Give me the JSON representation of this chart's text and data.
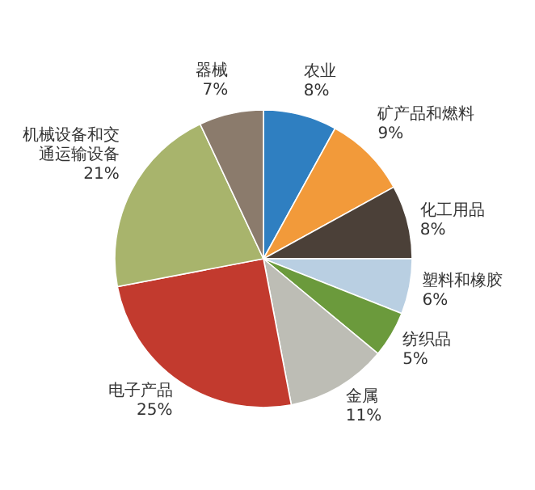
{
  "chart_data": {
    "type": "pie",
    "categories": [
      "农业",
      "矿产品和燃料",
      "化工用品",
      "塑料和橡胶",
      "纺织品",
      "金属",
      "电子产品",
      "机械设备和交通运输设备",
      "器械"
    ],
    "values": [
      8,
      9,
      8,
      6,
      5,
      11,
      25,
      21,
      7
    ],
    "value_labels": [
      "8%",
      "9%",
      "8%",
      "6%",
      "5%",
      "11%",
      "25%",
      "21%",
      "7%"
    ],
    "colors": [
      "#2f7fc1",
      "#f29a3a",
      "#4b4038",
      "#b9cfe2",
      "#6b9a3c",
      "#bdbdb5",
      "#c23a2e",
      "#a8b46c",
      "#8b7b6c"
    ]
  }
}
